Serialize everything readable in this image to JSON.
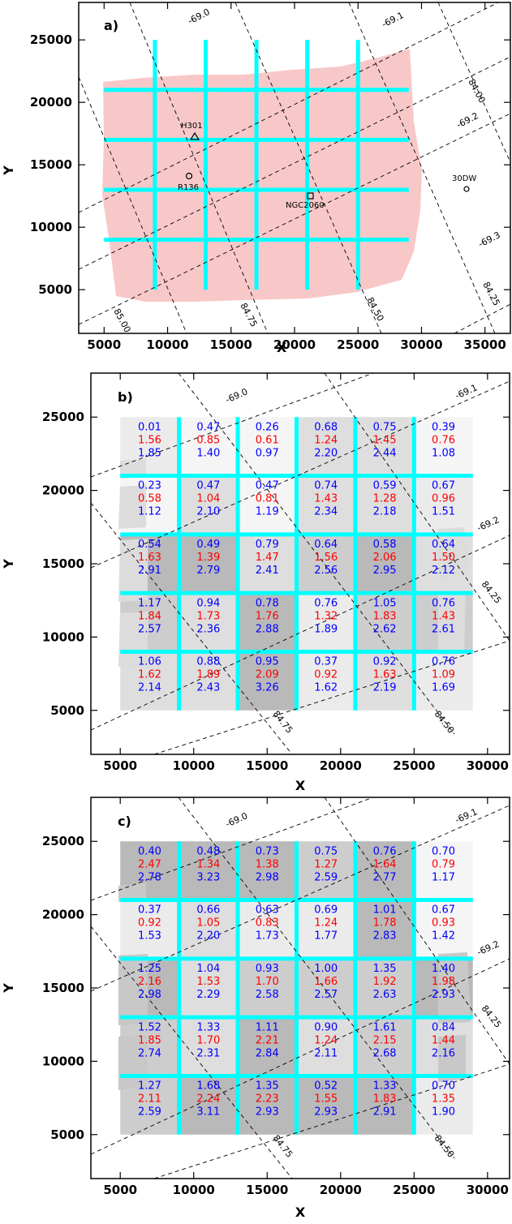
{
  "figure": {
    "panels": [
      {
        "id": "a",
        "tag": "a)",
        "xlabel": "X",
        "ylabel": "Y",
        "xlim": [
          3000,
          37000
        ],
        "ylim": [
          1500,
          28000
        ],
        "xticks": [
          "5000",
          "10000",
          "15000",
          "20000",
          "25000",
          "30000",
          "35000"
        ],
        "yticks": [
          "5000",
          "10000",
          "15000",
          "20000",
          "25000"
        ],
        "grid_x": [
          9000,
          13000,
          17000,
          21000,
          25000
        ],
        "grid_y": [
          9000,
          13000,
          17000,
          21000
        ],
        "footprint_color": "#f8c8c8",
        "objects": [
          {
            "name": "H301",
            "marker": "triangle",
            "x": 12400,
            "y": 17500
          },
          {
            "name": "R136",
            "marker": "circle",
            "x": 11800,
            "y": 14300
          },
          {
            "name": "NGC2060",
            "marker": "square",
            "x": 21200,
            "y": 12800
          },
          {
            "name": "30DW",
            "marker": "circle",
            "x": 33400,
            "y": 13400
          }
        ],
        "dec_labels": [
          "-69.0",
          "-69.1",
          "-69.2",
          "-69.3"
        ],
        "ra_labels": [
          "85.00",
          "84.75",
          "84.50",
          "84.25",
          "84.00"
        ]
      },
      {
        "id": "b",
        "tag": "b)",
        "xlabel": "X",
        "ylabel": "Y",
        "xlim": [
          3000,
          31500
        ],
        "ylim": [
          2000,
          28000
        ],
        "xticks": [
          "5000",
          "10000",
          "15000",
          "20000",
          "25000",
          "30000"
        ],
        "yticks": [
          "5000",
          "10000",
          "15000",
          "20000",
          "25000"
        ],
        "grid_x": [
          9000,
          13000,
          17000,
          21000,
          25000
        ],
        "grid_y": [
          9000,
          13000,
          17000,
          21000
        ],
        "dec_labels": [
          "-69.0",
          "-69.1",
          "-69.2"
        ],
        "ra_labels": [
          "84.75",
          "84.50",
          "84.25"
        ],
        "cells": [
          [
            [
              "0.01",
              "1.56",
              "1.85"
            ],
            [
              "0.47",
              "0.85",
              "1.40"
            ],
            [
              "0.26",
              "0.61",
              "0.97"
            ],
            [
              "0.68",
              "1.24",
              "2.20"
            ],
            [
              "0.75",
              "1.45",
              "2.44"
            ],
            [
              "0.39",
              "0.76",
              "1.08"
            ]
          ],
          [
            [
              "0.23",
              "0.58",
              "1.12"
            ],
            [
              "0.47",
              "1.04",
              "2.10"
            ],
            [
              "0.47",
              "0.81",
              "1.19"
            ],
            [
              "0.74",
              "1.43",
              "2.34"
            ],
            [
              "0.59",
              "1.28",
              "2.18"
            ],
            [
              "0.67",
              "0.96",
              "1.51"
            ]
          ],
          [
            [
              "0.54",
              "1.63",
              "2.91"
            ],
            [
              "0.49",
              "1.39",
              "2.79"
            ],
            [
              "0.79",
              "1.47",
              "2.41"
            ],
            [
              "0.64",
              "1.56",
              "2.56"
            ],
            [
              "0.58",
              "2.06",
              "2.95"
            ],
            [
              "0.64",
              "1.50",
              "2.12"
            ]
          ],
          [
            [
              "1.17",
              "1.84",
              "2.57"
            ],
            [
              "0.94",
              "1.73",
              "2.36"
            ],
            [
              "0.78",
              "1.76",
              "2.88"
            ],
            [
              "0.76",
              "1.32",
              "1.89"
            ],
            [
              "1.05",
              "1.83",
              "2.62"
            ],
            [
              "0.76",
              "1.43",
              "2.61"
            ]
          ],
          [
            [
              "1.06",
              "1.62",
              "2.14"
            ],
            [
              "0.88",
              "1.89",
              "2.43"
            ],
            [
              "0.95",
              "2.09",
              "3.26"
            ],
            [
              "0.37",
              "0.92",
              "1.62"
            ],
            [
              "0.92",
              "1.63",
              "2.19"
            ],
            [
              "0.76",
              "1.09",
              "1.69"
            ]
          ]
        ]
      },
      {
        "id": "c",
        "tag": "c)",
        "xlabel": "X",
        "ylabel": "Y",
        "xlim": [
          3000,
          31500
        ],
        "ylim": [
          2000,
          28000
        ],
        "xticks": [
          "5000",
          "10000",
          "15000",
          "20000",
          "25000",
          "30000"
        ],
        "yticks": [
          "5000",
          "10000",
          "15000",
          "20000",
          "25000"
        ],
        "grid_x": [
          9000,
          13000,
          17000,
          21000,
          25000
        ],
        "grid_y": [
          9000,
          13000,
          17000,
          21000
        ],
        "dec_labels": [
          "-69.0",
          "-69.1",
          "-69.2"
        ],
        "ra_labels": [
          "84.75",
          "84.50",
          "84.25"
        ],
        "cells": [
          [
            [
              "0.40",
              "2.47",
              "2.78"
            ],
            [
              "0.48",
              "1.34",
              "3.23"
            ],
            [
              "0.73",
              "1.38",
              "2.98"
            ],
            [
              "0.75",
              "1.27",
              "2.59"
            ],
            [
              "0.76",
              "1.64",
              "2.77"
            ],
            [
              "0.70",
              "0.79",
              "1.17"
            ]
          ],
          [
            [
              "0.37",
              "0.92",
              "1.53"
            ],
            [
              "0.66",
              "1.05",
              "2.20"
            ],
            [
              "0.63",
              "0.83",
              "1.73"
            ],
            [
              "0.69",
              "1.24",
              "1.77"
            ],
            [
              "1.01",
              "1.78",
              "2.83"
            ],
            [
              "0.67",
              "0.93",
              "1.42"
            ]
          ],
          [
            [
              "1.25",
              "2.16",
              "2.98"
            ],
            [
              "1.04",
              "1.53",
              "2.29"
            ],
            [
              "0.93",
              "1.70",
              "2.58"
            ],
            [
              "1.00",
              "1.66",
              "2.57"
            ],
            [
              "1.35",
              "1.92",
              "2.63"
            ],
            [
              "1.40",
              "1.98",
              "2.93"
            ]
          ],
          [
            [
              "1.52",
              "1.85",
              "2.74"
            ],
            [
              "1.33",
              "1.70",
              "2.31"
            ],
            [
              "1.11",
              "2.21",
              "2.84"
            ],
            [
              "0.90",
              "1.24",
              "2.11"
            ],
            [
              "1.61",
              "2.15",
              "2.68"
            ],
            [
              "0.84",
              "1.44",
              "2.16"
            ]
          ],
          [
            [
              "1.27",
              "2.11",
              "2.59"
            ],
            [
              "1.68",
              "2.24",
              "3.11"
            ],
            [
              "1.35",
              "2.23",
              "2.93"
            ],
            [
              "0.52",
              "1.55",
              "2.93"
            ],
            [
              "1.33",
              "1.83",
              "2.91"
            ],
            [
              "0.70",
              "1.35",
              "1.90"
            ]
          ]
        ]
      }
    ],
    "colors": {
      "grid_lines": "#00ffff",
      "value_top": "#0000ff",
      "value_mid": "#ff0000",
      "value_bottom": "#0000ff",
      "coord_lines": "#000000"
    }
  },
  "chart_data": [
    {
      "type": "scatter",
      "title": "a)",
      "xlabel": "X",
      "ylabel": "Y",
      "xlim": [
        3000,
        37000
      ],
      "ylim": [
        1500,
        28000
      ],
      "points": [
        {
          "label": "H301",
          "x": 12400,
          "y": 17500
        },
        {
          "label": "R136",
          "x": 11800,
          "y": 14300
        },
        {
          "label": "NGC2060",
          "x": 21200,
          "y": 12800
        },
        {
          "label": "30DW",
          "x": 33400,
          "y": 13400
        }
      ],
      "grid": false,
      "legend": "none"
    },
    {
      "type": "heatmap",
      "title": "b)",
      "xlabel": "X",
      "ylabel": "Y",
      "xlim": [
        3000,
        31500
      ],
      "ylim": [
        2000,
        28000
      ],
      "note_rows": "top to bottom",
      "legend": "none"
    },
    {
      "type": "heatmap",
      "title": "c)",
      "xlabel": "X",
      "ylabel": "Y",
      "xlim": [
        3000,
        31500
      ],
      "ylim": [
        2000,
        28000
      ],
      "legend": "none"
    }
  ]
}
